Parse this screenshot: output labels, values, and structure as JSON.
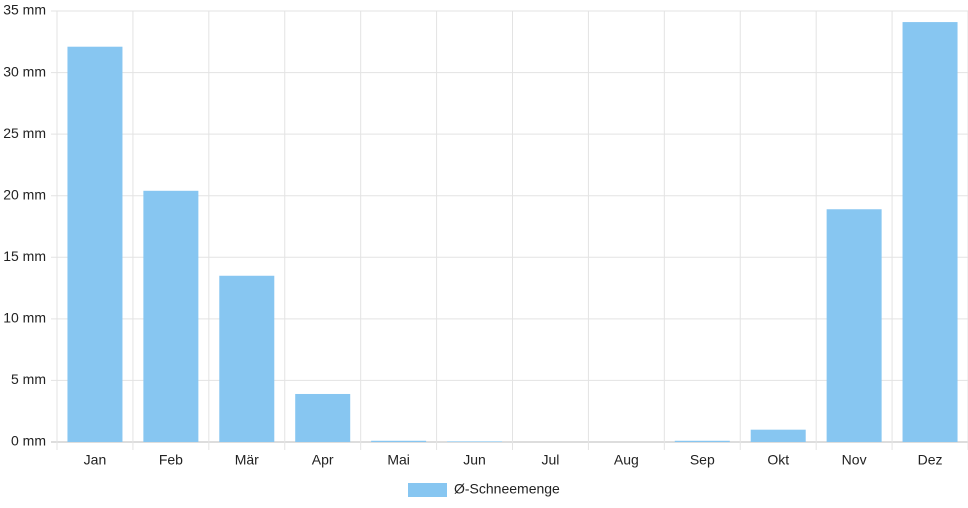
{
  "chart_data": {
    "type": "bar",
    "categories": [
      "Jan",
      "Feb",
      "Mär",
      "Apr",
      "Mai",
      "Jun",
      "Jul",
      "Aug",
      "Sep",
      "Okt",
      "Nov",
      "Dez"
    ],
    "series": [
      {
        "name": "Ø-Schneemenge",
        "color": "#87c6f1",
        "values": [
          32.1,
          20.4,
          13.5,
          3.9,
          0.1,
          0.05,
          0,
          0,
          0.1,
          1.0,
          18.9,
          34.1
        ]
      }
    ],
    "ylim": [
      0,
      35
    ],
    "yticks": [
      {
        "value": 0,
        "label": "0 mm"
      },
      {
        "value": 5,
        "label": "5 mm"
      },
      {
        "value": 10,
        "label": "10 mm"
      },
      {
        "value": 15,
        "label": "15 mm"
      },
      {
        "value": 20,
        "label": "20 mm"
      },
      {
        "value": 25,
        "label": "25 mm"
      },
      {
        "value": 30,
        "label": "30 mm"
      },
      {
        "value": 35,
        "label": "35 mm"
      }
    ],
    "grid": true,
    "legend": "bottom"
  }
}
